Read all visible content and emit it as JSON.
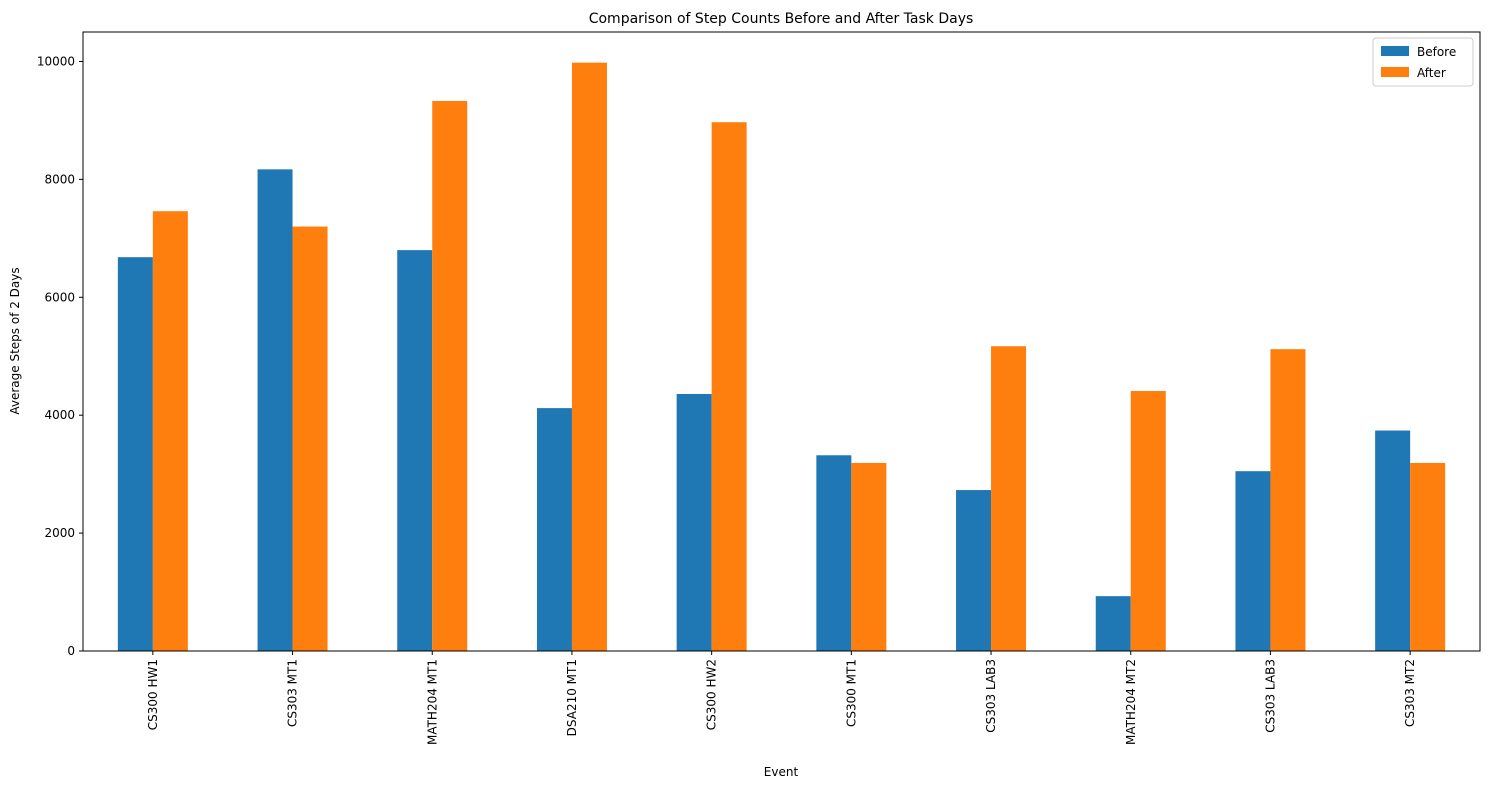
{
  "chart_data": {
    "type": "bar",
    "title": "Comparison of Step Counts Before and After Task Days",
    "xlabel": "Event",
    "ylabel": "Average Steps of 2 Days",
    "categories": [
      "CS300 HW1",
      "CS303 MT1",
      "MATH204 MT1",
      "DSA210 MT1",
      "CS300 HW2",
      "CS300 MT1",
      "CS303 LAB3",
      "MATH204 MT2",
      "CS303 LAB3",
      "CS303 MT2"
    ],
    "series": [
      {
        "name": "Before",
        "color": "#1f77b4",
        "values": [
          6680,
          8170,
          6800,
          4120,
          4360,
          3320,
          2730,
          930,
          3050,
          3740
        ]
      },
      {
        "name": "After",
        "color": "#ff7f0e",
        "values": [
          7460,
          7200,
          9330,
          9980,
          8970,
          3190,
          5170,
          4410,
          5120,
          3190
        ]
      }
    ],
    "ylim": [
      0,
      10500
    ],
    "yticks": [
      0,
      2000,
      4000,
      6000,
      8000,
      10000
    ],
    "ytick_labels": [
      "0",
      "2000",
      "4000",
      "6000",
      "8000",
      "10000"
    ],
    "grid": false,
    "legend_position": "top-right"
  }
}
